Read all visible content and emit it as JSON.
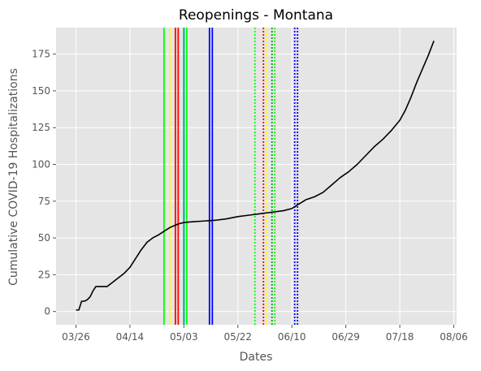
{
  "chart_data": {
    "type": "line",
    "title": "Reopenings - Montana",
    "xlabel": "Dates",
    "ylabel": "Cumulative COVID-19 Hospitalizations",
    "x_tick_labels": [
      "03/26",
      "04/14",
      "05/03",
      "05/22",
      "06/10",
      "06/29",
      "07/18",
      "08/06"
    ],
    "x_tick_dates": [
      "2020-03-26",
      "2020-04-14",
      "2020-05-03",
      "2020-05-22",
      "2020-06-10",
      "2020-06-29",
      "2020-07-18",
      "2020-08-06"
    ],
    "xlim": [
      "2020-03-19",
      "2020-08-07"
    ],
    "y_ticks": [
      0,
      25,
      50,
      75,
      100,
      125,
      150,
      175
    ],
    "y_tick_labels": [
      "0",
      "25",
      "50",
      "75",
      "100",
      "125",
      "150",
      "175"
    ],
    "ylim": [
      -9,
      193
    ],
    "grid": true,
    "legend": "none",
    "background_color": "#e5e5e5",
    "grid_color": "#ffffff",
    "series": [
      {
        "color": "#000000",
        "points": [
          [
            "2020-03-26",
            1
          ],
          [
            "2020-03-27",
            1
          ],
          [
            "2020-03-28",
            7
          ],
          [
            "2020-03-29",
            7
          ],
          [
            "2020-03-30",
            8
          ],
          [
            "2020-03-31",
            10
          ],
          [
            "2020-04-01",
            14
          ],
          [
            "2020-04-02",
            17
          ],
          [
            "2020-04-04",
            17
          ],
          [
            "2020-04-06",
            17
          ],
          [
            "2020-04-08",
            20
          ],
          [
            "2020-04-10",
            23
          ],
          [
            "2020-04-12",
            26
          ],
          [
            "2020-04-14",
            30
          ],
          [
            "2020-04-16",
            36
          ],
          [
            "2020-04-18",
            42
          ],
          [
            "2020-04-20",
            47
          ],
          [
            "2020-04-22",
            50
          ],
          [
            "2020-04-24",
            52
          ],
          [
            "2020-04-26",
            54.5
          ],
          [
            "2020-04-28",
            57
          ],
          [
            "2020-05-01",
            59.5
          ],
          [
            "2020-05-03",
            60.5
          ],
          [
            "2020-05-06",
            61
          ],
          [
            "2020-05-10",
            61.5
          ],
          [
            "2020-05-14",
            62
          ],
          [
            "2020-05-18",
            63
          ],
          [
            "2020-05-22",
            64.5
          ],
          [
            "2020-05-26",
            65.5
          ],
          [
            "2020-05-30",
            66.5
          ],
          [
            "2020-06-03",
            67.5
          ],
          [
            "2020-06-07",
            68.5
          ],
          [
            "2020-06-10",
            70
          ],
          [
            "2020-06-12",
            72.5
          ],
          [
            "2020-06-15",
            76
          ],
          [
            "2020-06-18",
            78
          ],
          [
            "2020-06-21",
            81
          ],
          [
            "2020-06-24",
            86
          ],
          [
            "2020-06-27",
            91
          ],
          [
            "2020-06-30",
            95
          ],
          [
            "2020-07-03",
            100
          ],
          [
            "2020-07-06",
            106
          ],
          [
            "2020-07-09",
            112
          ],
          [
            "2020-07-12",
            117
          ],
          [
            "2020-07-15",
            123
          ],
          [
            "2020-07-18",
            130
          ],
          [
            "2020-07-20",
            137
          ],
          [
            "2020-07-22",
            146
          ],
          [
            "2020-07-24",
            156
          ],
          [
            "2020-07-26",
            165
          ],
          [
            "2020-07-28",
            174
          ],
          [
            "2020-07-30",
            184
          ]
        ]
      }
    ],
    "vertical_lines": [
      {
        "date": "2020-04-26",
        "color": "#00ff00",
        "style": "solid"
      },
      {
        "date": "2020-04-28",
        "color": "#ffff00",
        "style": "solid"
      },
      {
        "date": "2020-04-30",
        "color": "#ff0000",
        "style": "solid"
      },
      {
        "date": "2020-05-01",
        "color": "#ff0000",
        "style": "solid"
      },
      {
        "date": "2020-05-03",
        "color": "#00ff00",
        "style": "solid"
      },
      {
        "date": "2020-05-03",
        "color": "#00a0a0",
        "style": "solid"
      },
      {
        "date": "2020-05-04",
        "color": "#00ff00",
        "style": "solid"
      },
      {
        "date": "2020-05-12",
        "color": "#0000ff",
        "style": "solid"
      },
      {
        "date": "2020-05-13",
        "color": "#0000ff",
        "style": "solid"
      },
      {
        "date": "2020-05-28",
        "color": "#00ff00",
        "style": "dotted"
      },
      {
        "date": "2020-05-31",
        "color": "#ff0000",
        "style": "dotted"
      },
      {
        "date": "2020-06-01",
        "color": "#ffff00",
        "style": "dotted"
      },
      {
        "date": "2020-06-03",
        "color": "#00a000",
        "style": "dotted"
      },
      {
        "date": "2020-06-04",
        "color": "#00ff00",
        "style": "dotted"
      },
      {
        "date": "2020-06-11",
        "color": "#0000ff",
        "style": "dotted"
      },
      {
        "date": "2020-06-12",
        "color": "#0000ff",
        "style": "dotted"
      }
    ]
  }
}
